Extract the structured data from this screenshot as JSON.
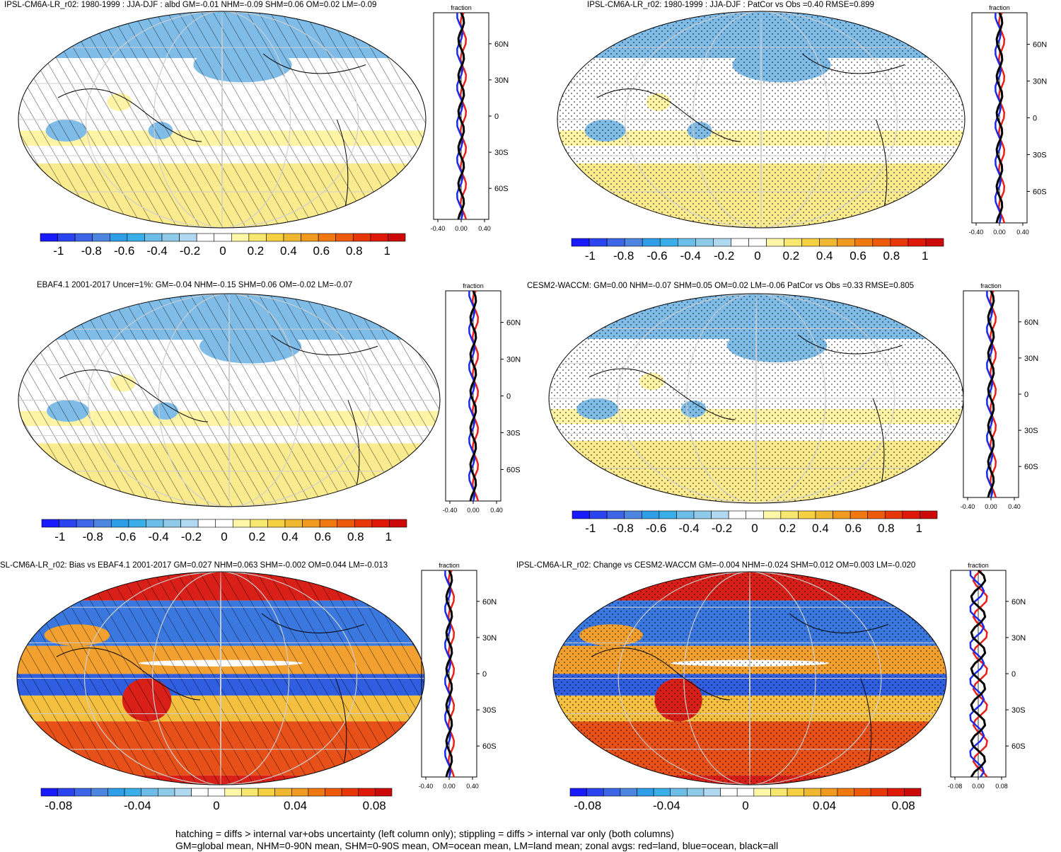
{
  "panels": [
    {
      "id": "p1",
      "title": "IPSL-CM6A-LR_r02: 1980-1999 : JJA-DJF : albd GM=-0.01 NHM=-0.09 SHM=0.06 OM=0.02 LM=-0.09",
      "overlay": "hatching",
      "palette": "albedo"
    },
    {
      "id": "p2",
      "title": "IPSL-CM6A-LR_r02: 1980-1999 : JJA-DJF : PatCor vs Obs =0.40 RMSE=0.899",
      "overlay": "stippling",
      "palette": "albedo"
    },
    {
      "id": "p3",
      "title": "EBAF4.1 2001-2017 Uncer=1%: GM=-0.04 NHM=-0.15 SHM=0.06 OM=-0.02 LM=-0.07",
      "overlay": "hatching",
      "palette": "albedo"
    },
    {
      "id": "p4",
      "title": "CESM2-WACCM: GM=0.00 NHM=-0.07 SHM=0.05 OM=0.02 LM=-0.06 PatCor vs Obs =0.33 RMSE=0.805",
      "overlay": "stippling",
      "palette": "albedo"
    },
    {
      "id": "p5",
      "title": "SL-CM6A-LR_r02: Bias vs EBAF4.1 2001-2017 GM=0.027 NHM=0.063 SHM=-0.002 OM=0.044 LM=-0.013",
      "overlay": "hatching",
      "palette": "bias"
    },
    {
      "id": "p6",
      "title": "IPSL-CM6A-LR_r02: Change vs CESM2-WACCM GM=-0.004 NHM=-0.024 SHM=0.012 OM=0.003 LM=-0.020",
      "overlay": "stippling",
      "palette": "bias"
    }
  ],
  "zonal_axis": {
    "title": "fraction",
    "lat_labels": [
      "60N",
      "30N",
      "0",
      "30S",
      "60S"
    ],
    "x_ticks_a": [
      "-0.40",
      "0.00",
      "0.40"
    ],
    "x_ticks_b": [
      "-0.08",
      "0.00",
      "0.08"
    ]
  },
  "colorbar": {
    "labels_a": [
      "-1",
      "-0.8",
      "-0.6",
      "-0.4",
      "-0.2",
      "0",
      "0.2",
      "0.4",
      "0.6",
      "0.8",
      "1"
    ],
    "labels_b": [
      "-0.08",
      "-0.04",
      "0",
      "0.04",
      "0.08"
    ],
    "colors": [
      "#1a1aff",
      "#2a44f0",
      "#3d66e8",
      "#4d86e0",
      "#2f9ee8",
      "#3aaee8",
      "#6cbde8",
      "#8fcbe8",
      "#b0d8f0",
      "#ffffff",
      "#ffffff",
      "#fff6a8",
      "#f8e870",
      "#f5d040",
      "#f0b830",
      "#f09a20",
      "#f07a10",
      "#ec5a0a",
      "#e83808",
      "#e01808",
      "#cc0a0a"
    ]
  },
  "zonal_legend": {
    "land": "#e8201a",
    "ocean": "#1a2ae8",
    "all": "#000000"
  },
  "footer": {
    "line1": "hatching = diffs > internal var+obs uncertainty (left column only); stippling = diffs > internal var only (both columns)",
    "line2": "GM=global mean, NHM=0-90N mean, SHM=0-90S mean, OM=ocean mean, LM=land mean; zonal avgs: red=land, blue=ocean, black=all"
  }
}
